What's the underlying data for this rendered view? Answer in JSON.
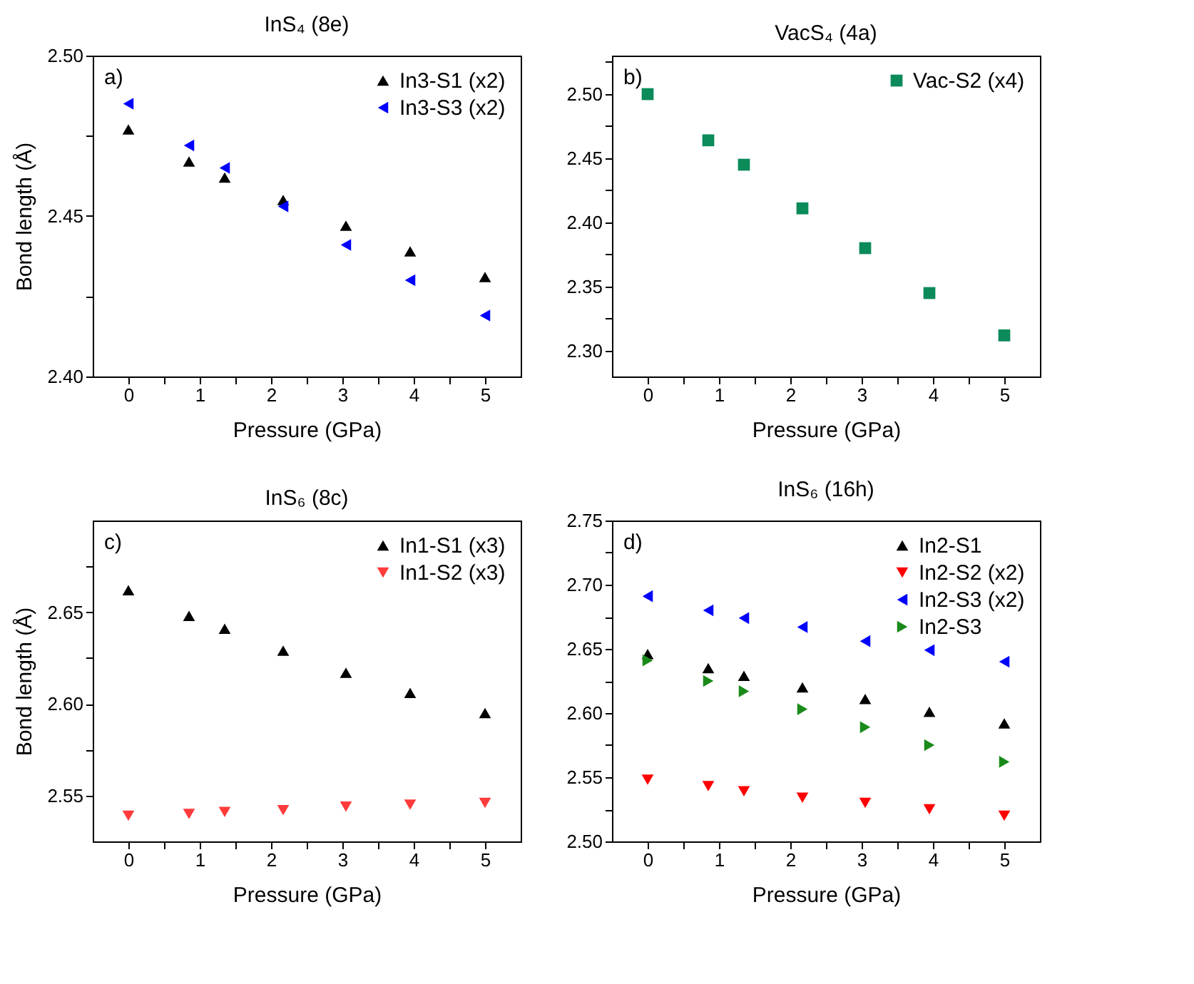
{
  "chart_data": [
    {
      "type": "scatter",
      "title": "InS₄ (8e)",
      "xlabel": "Pressure (GPa)",
      "ylabel": "Bond length (Å)",
      "annotations": [
        "a)"
      ],
      "x": [
        0,
        0.85,
        1.35,
        2.17,
        3.05,
        3.95,
        5.0
      ],
      "xlim": [
        -0.5,
        5.5
      ],
      "xticks": [
        0,
        {
          "value": 0.5,
          "label": null
        },
        1,
        {
          "value": 1.5,
          "label": null
        },
        2,
        {
          "value": 2.5,
          "label": null
        },
        3,
        {
          "value": 3.5,
          "label": null
        },
        4,
        {
          "value": 4.5,
          "label": null
        },
        5
      ],
      "ylim": [
        2.4,
        2.5
      ],
      "yticks": [
        {
          "value": 2.4,
          "label": "2.40"
        },
        {
          "value": 2.425,
          "label": null
        },
        {
          "value": 2.45,
          "label": "2.45"
        },
        {
          "value": 2.475,
          "label": null
        },
        {
          "value": 2.5,
          "label": "2.50"
        }
      ],
      "legend": "top right",
      "series": [
        {
          "name": "In3-S1 (x2)",
          "color": "#000000",
          "marker": "triangle-up",
          "values": [
            2.477,
            2.467,
            2.462,
            2.455,
            2.447,
            2.439,
            2.431
          ]
        },
        {
          "name": "In3-S3 (x2)",
          "color": "#0000ff",
          "marker": "triangle-left",
          "values": [
            2.485,
            2.472,
            2.465,
            2.453,
            2.441,
            2.43,
            2.419
          ]
        }
      ]
    },
    {
      "type": "scatter",
      "title": "VacS₄ (4a)",
      "xlabel": "Pressure (GPa)",
      "annotations": [
        "b)"
      ],
      "x": [
        0,
        0.85,
        1.35,
        2.17,
        3.05,
        3.95,
        5.0
      ],
      "xlim": [
        -0.5,
        5.5
      ],
      "xticks": [
        0,
        {
          "value": 0.5,
          "label": null
        },
        1,
        {
          "value": 1.5,
          "label": null
        },
        2,
        {
          "value": 2.5,
          "label": null
        },
        3,
        {
          "value": 3.5,
          "label": null
        },
        4,
        {
          "value": 4.5,
          "label": null
        },
        5
      ],
      "ylim": [
        2.28,
        2.53
      ],
      "yticks": [
        {
          "value": 2.3,
          "label": "2.30"
        },
        {
          "value": 2.325,
          "label": null
        },
        {
          "value": 2.35,
          "label": "2.35"
        },
        {
          "value": 2.375,
          "label": null
        },
        {
          "value": 2.4,
          "label": "2.40"
        },
        {
          "value": 2.425,
          "label": null
        },
        {
          "value": 2.45,
          "label": "2.45"
        },
        {
          "value": 2.475,
          "label": null
        },
        {
          "value": 2.5,
          "label": "2.50"
        },
        {
          "value": 2.525,
          "label": null
        }
      ],
      "legend": "top right",
      "series": [
        {
          "name": "Vac-S2 (x4)",
          "color": "#0b8a5a",
          "marker": "square",
          "values": [
            2.5,
            2.464,
            2.445,
            2.411,
            2.38,
            2.345,
            2.312
          ]
        }
      ]
    },
    {
      "type": "scatter",
      "title": "InS₆ (8c)",
      "xlabel": "Pressure (GPa)",
      "ylabel": "Bond length (Å)",
      "annotations": [
        "c)"
      ],
      "x": [
        0,
        0.85,
        1.35,
        2.17,
        3.05,
        3.95,
        5.0
      ],
      "xlim": [
        -0.5,
        5.5
      ],
      "xticks": [
        0,
        {
          "value": 0.5,
          "label": null
        },
        1,
        {
          "value": 1.5,
          "label": null
        },
        2,
        {
          "value": 2.5,
          "label": null
        },
        3,
        {
          "value": 3.5,
          "label": null
        },
        4,
        {
          "value": 4.5,
          "label": null
        },
        5
      ],
      "ylim": [
        2.525,
        2.7
      ],
      "yticks": [
        {
          "value": 2.55,
          "label": "2.55"
        },
        {
          "value": 2.575,
          "label": null
        },
        {
          "value": 2.6,
          "label": "2.60"
        },
        {
          "value": 2.625,
          "label": null
        },
        {
          "value": 2.65,
          "label": "2.65"
        },
        {
          "value": 2.675,
          "label": null
        }
      ],
      "legend": "top right",
      "series": [
        {
          "name": "In1-S1 (x3)",
          "color": "#000000",
          "marker": "triangle-up",
          "values": [
            2.662,
            2.648,
            2.641,
            2.629,
            2.617,
            2.606,
            2.595
          ]
        },
        {
          "name": "In1-S2 (x3)",
          "color": "#ff3b3b",
          "marker": "triangle-down",
          "values": [
            2.539,
            2.54,
            2.541,
            2.542,
            2.544,
            2.545,
            2.546
          ]
        }
      ]
    },
    {
      "type": "scatter",
      "title": "InS₆ (16h)",
      "xlabel": "Pressure (GPa)",
      "annotations": [
        "d)"
      ],
      "x": [
        0,
        0.85,
        1.35,
        2.17,
        3.05,
        3.95,
        5.0
      ],
      "xlim": [
        -0.5,
        5.5
      ],
      "xticks": [
        0,
        {
          "value": 0.5,
          "label": null
        },
        1,
        {
          "value": 1.5,
          "label": null
        },
        2,
        {
          "value": 2.5,
          "label": null
        },
        3,
        {
          "value": 3.5,
          "label": null
        },
        4,
        {
          "value": 4.5,
          "label": null
        },
        5
      ],
      "ylim": [
        2.5,
        2.75
      ],
      "yticks": [
        {
          "value": 2.5,
          "label": "2.50"
        },
        {
          "value": 2.525,
          "label": null
        },
        {
          "value": 2.55,
          "label": "2.55"
        },
        {
          "value": 2.575,
          "label": null
        },
        {
          "value": 2.6,
          "label": "2.60"
        },
        {
          "value": 2.625,
          "label": null
        },
        {
          "value": 2.65,
          "label": "2.65"
        },
        {
          "value": 2.675,
          "label": null
        },
        {
          "value": 2.7,
          "label": "2.70"
        },
        {
          "value": 2.725,
          "label": null
        },
        {
          "value": 2.75,
          "label": "2.75"
        }
      ],
      "legend": "top right",
      "series": [
        {
          "name": "In2-S1",
          "color": "#000000",
          "marker": "triangle-up",
          "values": [
            2.646,
            2.635,
            2.629,
            2.62,
            2.611,
            2.601,
            2.592
          ]
        },
        {
          "name": "In2-S2 (x2)",
          "color": "#ff0000",
          "marker": "triangle-down",
          "values": [
            2.548,
            2.543,
            2.539,
            2.534,
            2.53,
            2.525,
            2.52
          ]
        },
        {
          "name": "In2-S3 (x2)",
          "color": "#0000ff",
          "marker": "triangle-left",
          "values": [
            2.691,
            2.68,
            2.674,
            2.667,
            2.656,
            2.649,
            2.64
          ]
        },
        {
          "name": "In2-S3",
          "color": "#1a8a1a",
          "marker": "triangle-right",
          "values": [
            2.641,
            2.625,
            2.617,
            2.603,
            2.589,
            2.575,
            2.562
          ]
        }
      ]
    }
  ]
}
